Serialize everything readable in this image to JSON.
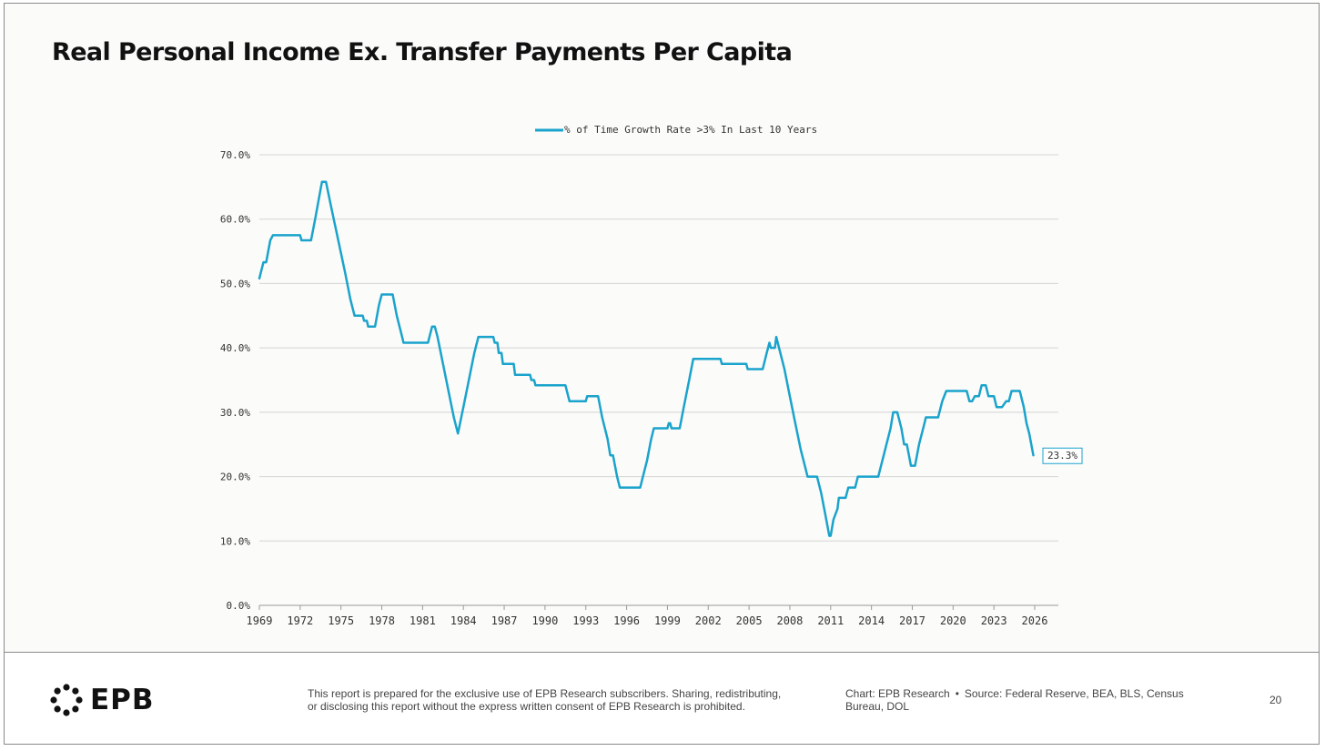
{
  "title": "Real Personal Income Ex. Transfer Payments Per Capita",
  "colors": {
    "series": "#1aa3cc",
    "grid": "#d4d4d4",
    "axis": "#999999",
    "text": "#333333"
  },
  "footer": {
    "logo_text": "EPB",
    "disclaimer_line1": "This report is prepared for the exclusive use of EPB Research subscribers. Sharing, redistributing,",
    "disclaimer_line2": "or disclosing this report without the express written consent of EPB Research is prohibited.",
    "chart_credit": "Chart: EPB Research",
    "source": "Source: Federal Reserve, BEA, BLS, Census Bureau, DOL",
    "page_number": "20"
  },
  "chart_data": {
    "type": "line",
    "legend_position": "top-center",
    "xlim": [
      1969,
      2026
    ],
    "ylim": [
      0,
      70
    ],
    "x_ticks": [
      1969,
      1972,
      1975,
      1978,
      1981,
      1984,
      1987,
      1990,
      1993,
      1996,
      1999,
      2002,
      2005,
      2008,
      2011,
      2014,
      2017,
      2020,
      2023,
      2026
    ],
    "y_ticks": [
      0,
      10,
      20,
      30,
      40,
      50,
      60,
      70
    ],
    "y_tick_labels": [
      "0.0%",
      "10.0%",
      "20.0%",
      "30.0%",
      "40.0%",
      "50.0%",
      "60.0%",
      "70.0%"
    ],
    "end_label": "23.3%",
    "series": [
      {
        "name": "% of Time Growth Rate >3% In Last 10 Years",
        "points": [
          [
            1969.0,
            50.8
          ],
          [
            1969.3,
            53.3
          ],
          [
            1969.5,
            53.3
          ],
          [
            1969.8,
            56.7
          ],
          [
            1970.0,
            57.5
          ],
          [
            1972.0,
            57.5
          ],
          [
            1972.1,
            56.7
          ],
          [
            1972.8,
            56.7
          ],
          [
            1973.1,
            60.0
          ],
          [
            1973.6,
            65.8
          ],
          [
            1973.9,
            65.8
          ],
          [
            1974.3,
            61.7
          ],
          [
            1974.8,
            56.7
          ],
          [
            1975.3,
            51.7
          ],
          [
            1975.7,
            47.5
          ],
          [
            1976.0,
            45.0
          ],
          [
            1976.6,
            45.0
          ],
          [
            1976.7,
            44.2
          ],
          [
            1976.9,
            44.2
          ],
          [
            1977.0,
            43.3
          ],
          [
            1977.5,
            43.3
          ],
          [
            1977.8,
            46.7
          ],
          [
            1978.0,
            48.3
          ],
          [
            1978.8,
            48.3
          ],
          [
            1979.1,
            45.0
          ],
          [
            1979.5,
            41.7
          ],
          [
            1979.6,
            40.8
          ],
          [
            1981.4,
            40.8
          ],
          [
            1981.7,
            43.3
          ],
          [
            1981.9,
            43.3
          ],
          [
            1982.1,
            41.7
          ],
          [
            1982.5,
            37.5
          ],
          [
            1982.9,
            33.3
          ],
          [
            1983.3,
            29.2
          ],
          [
            1983.6,
            26.7
          ],
          [
            1984.0,
            30.8
          ],
          [
            1984.4,
            35.0
          ],
          [
            1984.8,
            39.2
          ],
          [
            1985.1,
            41.7
          ],
          [
            1986.2,
            41.7
          ],
          [
            1986.3,
            40.8
          ],
          [
            1986.5,
            40.8
          ],
          [
            1986.6,
            39.2
          ],
          [
            1986.8,
            39.2
          ],
          [
            1986.9,
            37.5
          ],
          [
            1987.7,
            37.5
          ],
          [
            1987.8,
            35.8
          ],
          [
            1988.9,
            35.8
          ],
          [
            1989.0,
            35.0
          ],
          [
            1989.2,
            35.0
          ],
          [
            1989.3,
            34.2
          ],
          [
            1991.5,
            34.2
          ],
          [
            1991.8,
            31.7
          ],
          [
            1993.0,
            31.7
          ],
          [
            1993.1,
            32.5
          ],
          [
            1993.9,
            32.5
          ],
          [
            1994.2,
            29.2
          ],
          [
            1994.6,
            25.8
          ],
          [
            1994.8,
            23.3
          ],
          [
            1995.0,
            23.3
          ],
          [
            1995.3,
            20.0
          ],
          [
            1995.5,
            18.3
          ],
          [
            1997.0,
            18.3
          ],
          [
            1997.2,
            20.0
          ],
          [
            1997.5,
            22.5
          ],
          [
            1997.8,
            25.8
          ],
          [
            1998.0,
            27.5
          ],
          [
            1999.0,
            27.5
          ],
          [
            1999.1,
            28.3
          ],
          [
            1999.2,
            28.3
          ],
          [
            1999.3,
            27.5
          ],
          [
            1999.9,
            27.5
          ],
          [
            2000.2,
            30.8
          ],
          [
            2000.6,
            35.0
          ],
          [
            2000.9,
            38.3
          ],
          [
            2002.9,
            38.3
          ],
          [
            2003.0,
            37.5
          ],
          [
            2004.8,
            37.5
          ],
          [
            2004.9,
            36.7
          ],
          [
            2006.0,
            36.7
          ],
          [
            2006.3,
            39.2
          ],
          [
            2006.5,
            40.8
          ],
          [
            2006.6,
            40.0
          ],
          [
            2006.9,
            40.0
          ],
          [
            2007.0,
            41.7
          ],
          [
            2007.3,
            39.2
          ],
          [
            2007.6,
            36.7
          ],
          [
            2008.0,
            32.5
          ],
          [
            2008.4,
            28.3
          ],
          [
            2008.8,
            24.2
          ],
          [
            2009.1,
            21.7
          ],
          [
            2009.3,
            20.0
          ],
          [
            2010.0,
            20.0
          ],
          [
            2010.3,
            17.5
          ],
          [
            2010.6,
            14.2
          ],
          [
            2010.9,
            10.8
          ],
          [
            2011.0,
            10.8
          ],
          [
            2011.2,
            13.3
          ],
          [
            2011.5,
            15.0
          ],
          [
            2011.6,
            16.7
          ],
          [
            2012.1,
            16.7
          ],
          [
            2012.3,
            18.3
          ],
          [
            2012.8,
            18.3
          ],
          [
            2013.0,
            20.0
          ],
          [
            2014.5,
            20.0
          ],
          [
            2014.8,
            22.5
          ],
          [
            2015.1,
            25.0
          ],
          [
            2015.4,
            27.5
          ],
          [
            2015.6,
            30.0
          ],
          [
            2015.9,
            30.0
          ],
          [
            2016.2,
            27.5
          ],
          [
            2016.4,
            25.0
          ],
          [
            2016.6,
            25.0
          ],
          [
            2016.9,
            21.7
          ],
          [
            2017.2,
            21.7
          ],
          [
            2017.5,
            25.0
          ],
          [
            2017.9,
            28.3
          ],
          [
            2018.0,
            29.2
          ],
          [
            2018.9,
            29.2
          ],
          [
            2019.2,
            31.7
          ],
          [
            2019.5,
            33.3
          ],
          [
            2021.0,
            33.3
          ],
          [
            2021.2,
            31.7
          ],
          [
            2021.4,
            31.7
          ],
          [
            2021.6,
            32.5
          ],
          [
            2021.9,
            32.5
          ],
          [
            2022.1,
            34.2
          ],
          [
            2022.4,
            34.2
          ],
          [
            2022.6,
            32.5
          ],
          [
            2023.0,
            32.5
          ],
          [
            2023.2,
            30.8
          ],
          [
            2023.6,
            30.8
          ],
          [
            2023.9,
            31.7
          ],
          [
            2024.1,
            31.7
          ],
          [
            2024.3,
            33.3
          ],
          [
            2024.9,
            33.3
          ],
          [
            2025.2,
            30.8
          ],
          [
            2025.4,
            28.3
          ],
          [
            2025.6,
            26.7
          ],
          [
            2025.9,
            23.3
          ]
        ]
      }
    ]
  }
}
